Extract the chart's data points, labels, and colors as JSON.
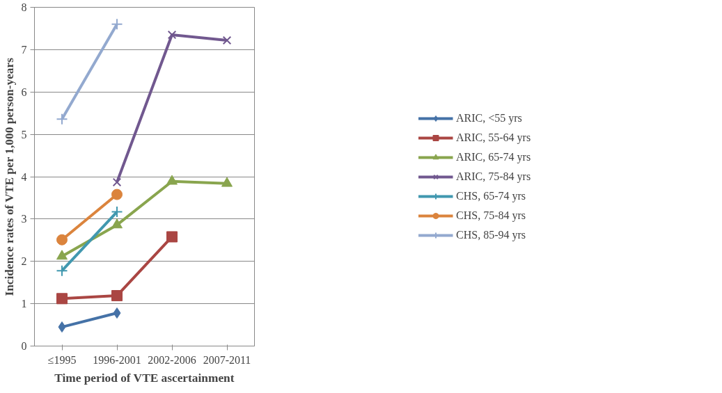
{
  "chart_data": {
    "type": "line",
    "xlabel": "Time period of VTE ascertainment",
    "ylabel": "Incidence rates of VTE per 1,000 person-years",
    "categories": [
      "≤1995",
      "1996-2001",
      "2002-2006",
      "2007-2011"
    ],
    "ylim": [
      0,
      8
    ],
    "yticks": [
      0,
      1,
      2,
      3,
      4,
      5,
      6,
      7,
      8
    ],
    "grid": "y",
    "legend": "right",
    "series": [
      {
        "name": "ARIC, <55 yrs",
        "color": "#4572a7",
        "marker": "diamond",
        "values": [
          0.45,
          0.78,
          null,
          null
        ]
      },
      {
        "name": "ARIC, 55-64 yrs",
        "color": "#aa4643",
        "marker": "square",
        "values": [
          1.12,
          1.19,
          2.58,
          null
        ]
      },
      {
        "name": "ARIC, 65-74 yrs",
        "color": "#89a54e",
        "marker": "triangle",
        "values": [
          2.12,
          2.86,
          3.89,
          3.84
        ]
      },
      {
        "name": "ARIC, 75-84 yrs",
        "color": "#71588f",
        "marker": "x",
        "values": [
          null,
          3.87,
          7.35,
          7.22
        ]
      },
      {
        "name": "CHS, 65-74 yrs",
        "color": "#4198af",
        "marker": "cross",
        "values": [
          1.78,
          3.17,
          null,
          null
        ]
      },
      {
        "name": "CHS, 75-84 yrs",
        "color": "#db843d",
        "marker": "circle",
        "values": [
          2.51,
          3.58,
          null,
          null
        ]
      },
      {
        "name": "CHS, 85-94 yrs",
        "color": "#93a9cf",
        "marker": "cross",
        "values": [
          5.36,
          7.6,
          null,
          null
        ]
      }
    ]
  }
}
